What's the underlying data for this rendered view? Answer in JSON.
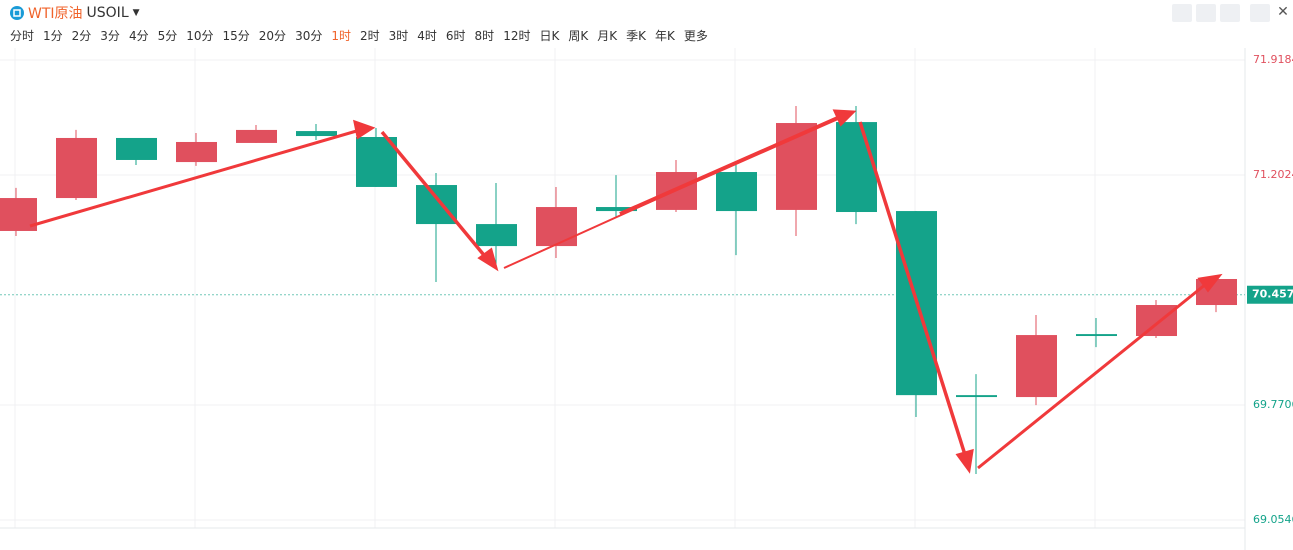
{
  "header": {
    "symbol_name": "WTI原油",
    "symbol_code": "USOIL"
  },
  "timeframes": [
    "分时",
    "1分",
    "2分",
    "3分",
    "4分",
    "5分",
    "10分",
    "15分",
    "20分",
    "30分",
    "1时",
    "2时",
    "3时",
    "4时",
    "6时",
    "8时",
    "12时",
    "日K",
    "周K",
    "月K",
    "季K",
    "年K",
    "更多"
  ],
  "active_timeframe_index": 10,
  "chart_data": {
    "type": "candlestick",
    "up_color": "#e0505e",
    "down_color": "#14a38a",
    "open": [
      70.854,
      71.059,
      71.433,
      71.283,
      71.402,
      71.476,
      71.439,
      71.14,
      70.897,
      70.76,
      71.003,
      70.985,
      71.221,
      70.985,
      71.532,
      70.978,
      69.832,
      69.82,
      70.212,
      70.2,
      70.393
    ],
    "high": [
      71.122,
      71.483,
      71.433,
      71.464,
      71.514,
      71.52,
      71.495,
      71.215,
      71.153,
      71.128,
      71.202,
      71.296,
      71.283,
      71.632,
      71.632,
      70.978,
      69.963,
      70.331,
      70.312,
      70.424,
      70.555
    ],
    "low": [
      70.823,
      71.047,
      71.265,
      71.259,
      71.402,
      71.42,
      71.128,
      70.536,
      70.623,
      70.686,
      70.935,
      70.972,
      70.704,
      70.823,
      70.897,
      69.696,
      69.341,
      69.77,
      70.131,
      70.188,
      70.349
    ],
    "close": [
      71.059,
      71.433,
      71.296,
      71.408,
      71.483,
      71.445,
      71.128,
      70.897,
      70.76,
      71.003,
      70.978,
      71.221,
      70.978,
      71.526,
      70.972,
      69.832,
      69.82,
      70.206,
      70.2,
      70.393,
      70.555
    ],
    "ylim": [
      69.0546,
      71.9184
    ],
    "yticks": [
      69.0546,
      69.7706,
      71.2024,
      71.9184
    ],
    "current_price": {
      "value": 70.457,
      "label": "70.4570"
    },
    "grid": true
  }
}
